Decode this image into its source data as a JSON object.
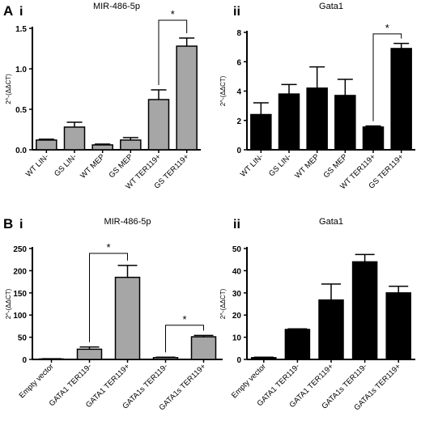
{
  "panel_labels": {
    "A": "A",
    "B": "B",
    "i": "i",
    "ii": "ii"
  },
  "chart_data": [
    {
      "id": "Ai",
      "type": "bar",
      "panel": "A",
      "subpanel": "i",
      "title": "MIR-486-5p",
      "ylabel": "2^-(ΔΔCT)",
      "categories": [
        "WT LIN-",
        "GS LIN-",
        "WT MEP",
        "GS MEP",
        "WT TER119+",
        "GS TER119+"
      ],
      "series": [
        {
          "values": [
            0.12,
            0.28,
            0.06,
            0.12,
            0.62,
            1.28
          ]
        }
      ],
      "errors": [
        0.01,
        0.06,
        0.01,
        0.03,
        0.12,
        0.1
      ],
      "ylim": [
        0,
        1.5
      ],
      "yticks": [
        "0.0",
        "0.5",
        "1.0",
        "1.5"
      ],
      "bar_color": "#a6a6a6",
      "annotations": [
        {
          "type": "significance",
          "from": 4,
          "to": 5,
          "label": "*",
          "at": 1.6
        }
      ]
    },
    {
      "id": "Aii",
      "type": "bar",
      "panel": "A",
      "subpanel": "ii",
      "title": "Gata1",
      "ylabel": "2^-(ΔΔCT)",
      "categories": [
        "WT LIN-",
        "GS LIN-",
        "WT MEP",
        "GS MEP",
        "WT TER119+",
        "GS TER119+"
      ],
      "series": [
        {
          "values": [
            2.4,
            3.8,
            4.2,
            3.7,
            1.55,
            6.9
          ]
        }
      ],
      "errors": [
        0.8,
        0.65,
        1.45,
        1.1,
        0.07,
        0.35
      ],
      "ylim": [
        0,
        8
      ],
      "yticks": [
        "0",
        "2",
        "4",
        "6",
        "8"
      ],
      "bar_color": "#000000",
      "annotations": [
        {
          "type": "significance",
          "from": 4,
          "to": 5,
          "label": "*",
          "at": 7.9
        }
      ]
    },
    {
      "id": "Bi",
      "type": "bar",
      "panel": "B",
      "subpanel": "i",
      "title": "MIR-486-5p",
      "ylabel": "2^-(ΔΔCT)",
      "categories": [
        "Empty vector",
        "GATA1 TER119-",
        "GATA1 TER119+",
        "GATA1s TER119-",
        "GATA1s TER119+"
      ],
      "series": [
        {
          "values": [
            1,
            23,
            185,
            4,
            51
          ]
        }
      ],
      "errors": [
        0.5,
        5,
        27,
        1,
        3
      ],
      "ylim": [
        0,
        250
      ],
      "yticks": [
        "0",
        "50",
        "100",
        "150",
        "200",
        "250"
      ],
      "bar_color": "#a6a6a6",
      "annotations": [
        {
          "type": "significance",
          "from": 1,
          "to": 2,
          "label": "*",
          "at": 239
        },
        {
          "type": "significance",
          "from": 3,
          "to": 4,
          "label": "*",
          "at": 77
        }
      ]
    },
    {
      "id": "Bii",
      "type": "bar",
      "panel": "B",
      "subpanel": "ii",
      "title": "Gata1",
      "ylabel": "2^-(ΔΔCT)",
      "categories": [
        "Empty vector",
        "GATA1 TER119-",
        "GATA1 TER119+",
        "GATA1s TER119-",
        "GATA1s TER119+"
      ],
      "series": [
        {
          "values": [
            0.8,
            13.5,
            26.8,
            44,
            30
          ]
        }
      ],
      "errors": [
        0.2,
        0.3,
        7.2,
        3.3,
        3
      ],
      "ylim": [
        0,
        50
      ],
      "yticks": [
        "0",
        "10",
        "20",
        "30",
        "40",
        "50"
      ],
      "bar_color": "#000000",
      "annotations": []
    }
  ]
}
